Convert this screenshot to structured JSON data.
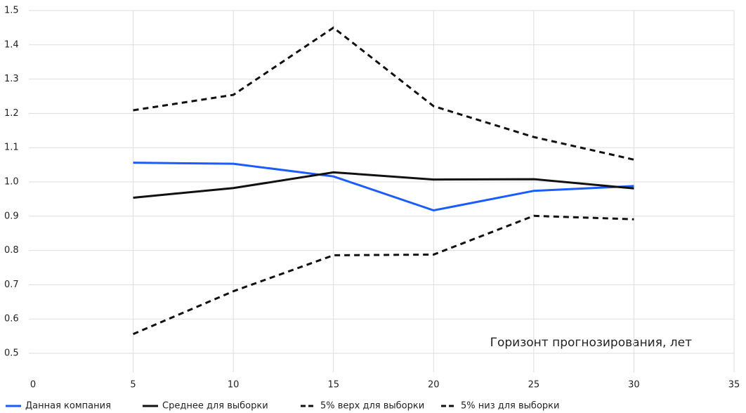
{
  "chart_data": {
    "type": "line",
    "x_label": "Горизонт прогнозирования, лет",
    "x": [
      5,
      10,
      15,
      20,
      25,
      30
    ],
    "series": [
      {
        "name": "Данная компания",
        "color": "#1a5cff",
        "dashed": false,
        "values": [
          1.056,
          1.053,
          1.016,
          0.917,
          0.974,
          0.988
        ]
      },
      {
        "name": "Среднее для выборки",
        "color": "#111111",
        "dashed": false,
        "values": [
          0.954,
          0.982,
          1.028,
          1.007,
          1.008,
          0.981
        ]
      },
      {
        "name": "5% верх для выборки",
        "color": "#111111",
        "dashed": true,
        "values": [
          1.209,
          1.254,
          1.45,
          1.221,
          1.131,
          1.065
        ]
      },
      {
        "name": "5% низ для выборки",
        "color": "#111111",
        "dashed": true,
        "values": [
          0.556,
          0.681,
          0.786,
          0.788,
          0.901,
          0.891
        ]
      }
    ],
    "xlim": [
      0,
      35
    ],
    "xticks": [
      0,
      5,
      10,
      15,
      20,
      25,
      30,
      35
    ],
    "ylim": [
      0.5,
      1.5
    ],
    "yticks": [
      0.5,
      0.6,
      0.7,
      0.8,
      0.9,
      {
        "value": 1,
        "label": "1.0"
      },
      1.1,
      1.2,
      1.3,
      1.4,
      1.5
    ],
    "grid": true,
    "legend": "bottom"
  }
}
